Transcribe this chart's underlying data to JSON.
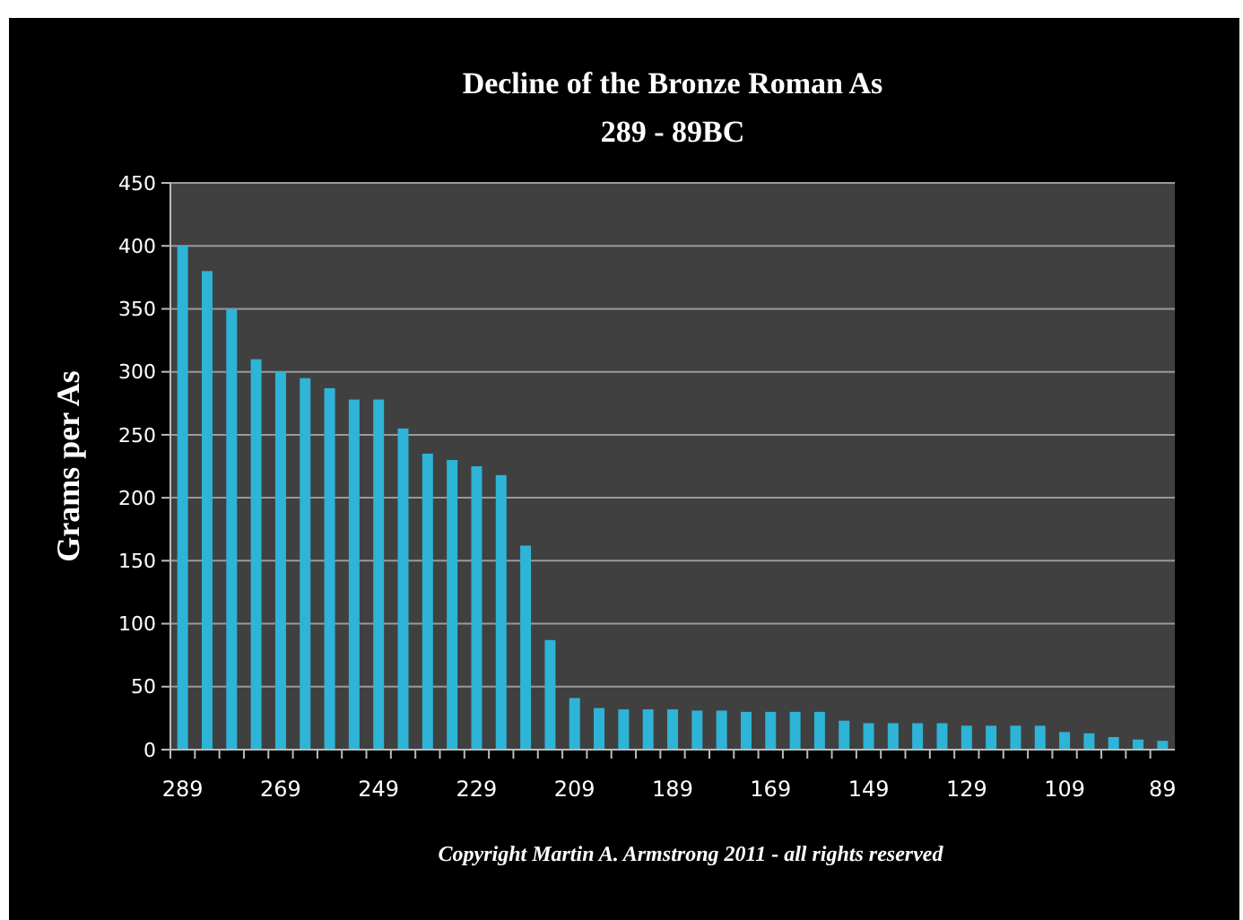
{
  "chart_data": {
    "type": "bar",
    "title": "Decline of the Bronze Roman As",
    "subtitle": "289 - 89BC",
    "ylabel": "Grams per As",
    "categories": [
      "289",
      null,
      null,
      null,
      "269",
      null,
      null,
      null,
      "249",
      null,
      null,
      null,
      "229",
      null,
      null,
      null,
      "209",
      null,
      null,
      null,
      "189",
      null,
      null,
      null,
      "169",
      null,
      null,
      null,
      "149",
      null,
      null,
      null,
      "129",
      null,
      null,
      null,
      "109",
      null,
      null,
      null,
      "89"
    ],
    "values": [
      400,
      380,
      350,
      310,
      300,
      295,
      287,
      278,
      278,
      255,
      235,
      230,
      225,
      218,
      162,
      87,
      41,
      33,
      32,
      32,
      32,
      31,
      31,
      30,
      30,
      30,
      30,
      23,
      21,
      21,
      21,
      21,
      19,
      19,
      19,
      19,
      14,
      13,
      10,
      8,
      7
    ],
    "color": "#2eb4d6",
    "ylim": [
      0,
      450
    ],
    "yticks": [
      0,
      50,
      100,
      150,
      200,
      250,
      300,
      350,
      400,
      450
    ],
    "grid": "y",
    "annotations": [
      "Copyright Martin A. Armstrong 2011 - all rights reserved"
    ]
  }
}
